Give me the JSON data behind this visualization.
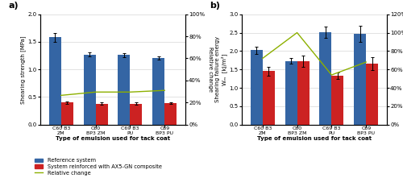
{
  "panel_a": {
    "categories": [
      "C60 B3\nZM",
      "C60\nBP3 ZM",
      "C69 B3\nPU",
      "C69\nBP3 PU"
    ],
    "blue_vals": [
      1.58,
      1.27,
      1.26,
      1.21
    ],
    "red_vals": [
      0.4,
      0.38,
      0.38,
      0.39
    ],
    "blue_errors": [
      0.08,
      0.04,
      0.04,
      0.025
    ],
    "red_errors": [
      0.02,
      0.025,
      0.02,
      0.02
    ],
    "green_line_pct": [
      0.265,
      0.295,
      0.295,
      0.31
    ],
    "ylim": [
      0,
      2.0
    ],
    "ylabel": "Shearing strength [MPa]",
    "ylabel2": "Relative change",
    "ylim2": [
      0,
      1.0
    ],
    "yticks2": [
      0.0,
      0.2,
      0.4,
      0.6,
      0.8,
      1.0
    ],
    "ytick2_labels": [
      "0%",
      "20%",
      "40%",
      "60%",
      "80%",
      "100%"
    ],
    "yticks": [
      0.0,
      0.5,
      1.0,
      1.5,
      2.0
    ],
    "ytick_labels": [
      "0.0",
      "0.5",
      "1.0",
      "1.5",
      "2.0"
    ],
    "xlabel": "Type of emulsion used for tack coat",
    "panel_label": "a)"
  },
  "panel_b": {
    "categories": [
      "C60 B3\nZM",
      "C60\nBP3 ZM",
      "C69 B3\nPU",
      "C69\nBP3 PU"
    ],
    "blue_vals": [
      2.02,
      1.73,
      2.51,
      2.47
    ],
    "red_vals": [
      1.45,
      1.72,
      1.33,
      1.66
    ],
    "blue_errors": [
      0.1,
      0.07,
      0.15,
      0.22
    ],
    "red_errors": [
      0.13,
      0.15,
      0.08,
      0.18
    ],
    "green_line_pct": [
      0.72,
      1.0,
      0.54,
      0.68
    ],
    "ylim": [
      0,
      3.0
    ],
    "ylabel_line1": "Shearing failure energy",
    "ylabel_line2": "Wₘ  [kJ/m²]",
    "ylabel2": "Relative change",
    "ylim2": [
      0,
      1.2
    ],
    "yticks2": [
      0.0,
      0.2,
      0.4,
      0.6,
      0.8,
      1.0,
      1.2
    ],
    "ytick2_labels": [
      "0%",
      "20%",
      "40%",
      "60%",
      "80%",
      "100%",
      "120%"
    ],
    "yticks": [
      0.0,
      0.5,
      1.0,
      1.5,
      2.0,
      2.5,
      3.0
    ],
    "ytick_labels": [
      "0.0",
      "0.5",
      "1.0",
      "1.5",
      "2.0",
      "2.5",
      "3.0"
    ],
    "xlabel": "Type of emulsion used for tack coat",
    "panel_label": "b)"
  },
  "legend": {
    "blue_label": "Reference system",
    "red_label": "System reinforced with AX5-GN composite",
    "green_label": "Relative change"
  },
  "colors": {
    "blue": "#3465a4",
    "red": "#cc2222",
    "green": "#8db000",
    "bar_width": 0.35
  }
}
